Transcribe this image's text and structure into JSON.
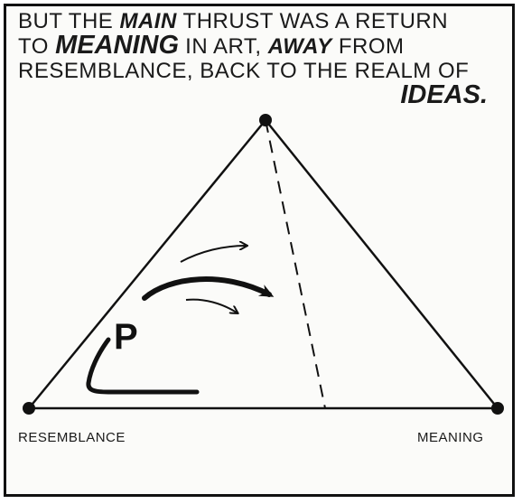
{
  "caption": {
    "l1_a": "BUT THE ",
    "l1_b": "MAIN",
    "l1_c": " THRUST WAS A RETURN",
    "l2_a": "TO ",
    "l2_b": "MEANING",
    "l2_c": " IN ART, ",
    "l2_d": "AWAY",
    "l2_e": " FROM",
    "l3": "RESEMBLANCE, BACK TO THE REALM OF",
    "l4": "IDEAS."
  },
  "diagram": {
    "vertex_letter": "P",
    "label_left": "RESEMBLANCE",
    "label_right": "MEANING"
  },
  "colors": {
    "ink": "#111111",
    "paper": "#fbfbf9"
  }
}
